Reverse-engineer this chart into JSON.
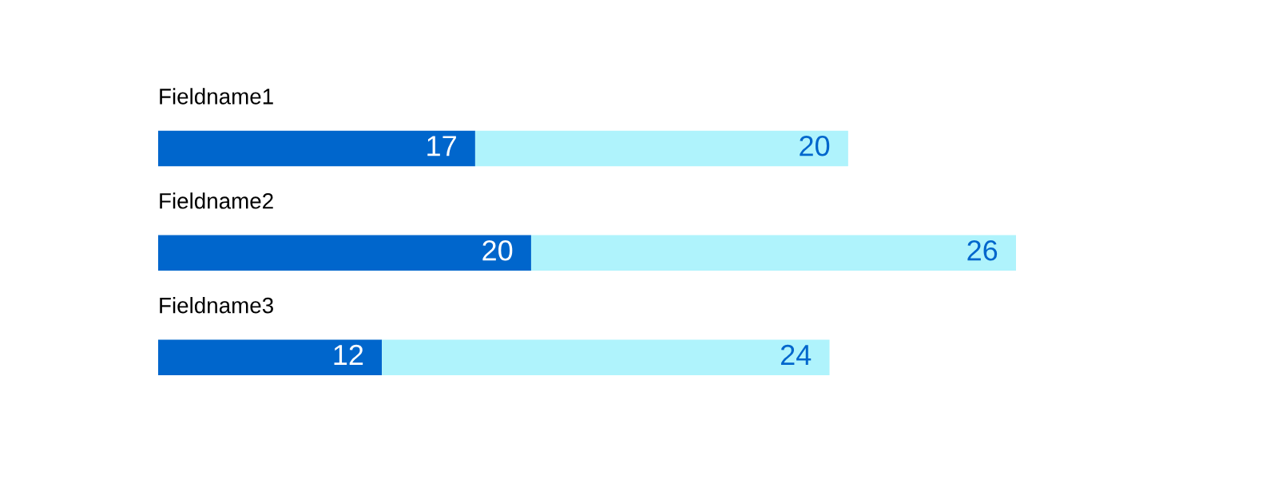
{
  "chart_data": {
    "type": "bar",
    "orientation": "horizontal",
    "stacked": true,
    "data_labels": true,
    "categories": [
      "Fieldname1",
      "Fieldname2",
      "Fieldname3"
    ],
    "series": [
      {
        "color": "#0066cc",
        "values": [
          17,
          20,
          12
        ]
      },
      {
        "color": "#aff3fc",
        "values": [
          20,
          26,
          24
        ]
      }
    ],
    "legend": false
  }
}
